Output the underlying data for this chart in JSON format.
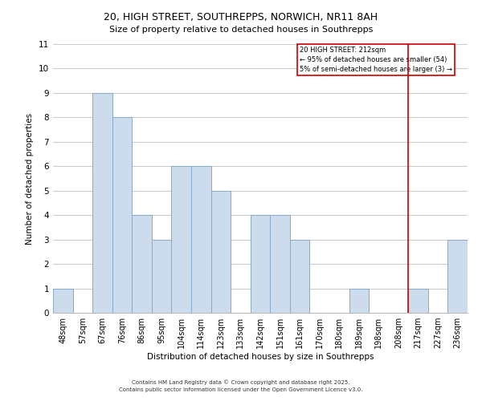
{
  "title": "20, HIGH STREET, SOUTHREPPS, NORWICH, NR11 8AH",
  "subtitle": "Size of property relative to detached houses in Southrepps",
  "xlabel": "Distribution of detached houses by size in Southrepps",
  "ylabel": "Number of detached properties",
  "bar_labels": [
    "48sqm",
    "57sqm",
    "67sqm",
    "76sqm",
    "86sqm",
    "95sqm",
    "104sqm",
    "114sqm",
    "123sqm",
    "133sqm",
    "142sqm",
    "151sqm",
    "161sqm",
    "170sqm",
    "180sqm",
    "189sqm",
    "198sqm",
    "208sqm",
    "217sqm",
    "227sqm",
    "236sqm"
  ],
  "bar_values": [
    1,
    0,
    9,
    8,
    4,
    3,
    6,
    6,
    5,
    0,
    4,
    4,
    3,
    0,
    0,
    1,
    0,
    0,
    1,
    0,
    3
  ],
  "bar_color": "#ccdcec",
  "bar_edge_color": "#88aac8",
  "ylim": [
    0,
    11
  ],
  "yticks": [
    0,
    1,
    2,
    3,
    4,
    5,
    6,
    7,
    8,
    9,
    10,
    11
  ],
  "vline_color": "#cc0000",
  "vline_pos": 17.5,
  "legend_title": "20 HIGH STREET: 212sqm",
  "legend_line1": "← 95% of detached houses are smaller (54)",
  "legend_line2": "5% of semi-detached houses are larger (3) →",
  "footnote1": "Contains HM Land Registry data © Crown copyright and database right 2025.",
  "footnote2": "Contains public sector information licensed under the Open Government Licence v3.0.",
  "bg_color": "#ffffff",
  "grid_color": "#cccccc",
  "title_fontsize": 9,
  "subtitle_fontsize": 8,
  "axis_label_fontsize": 7.5,
  "tick_fontsize": 7,
  "legend_fontsize": 6,
  "footnote_fontsize": 5
}
